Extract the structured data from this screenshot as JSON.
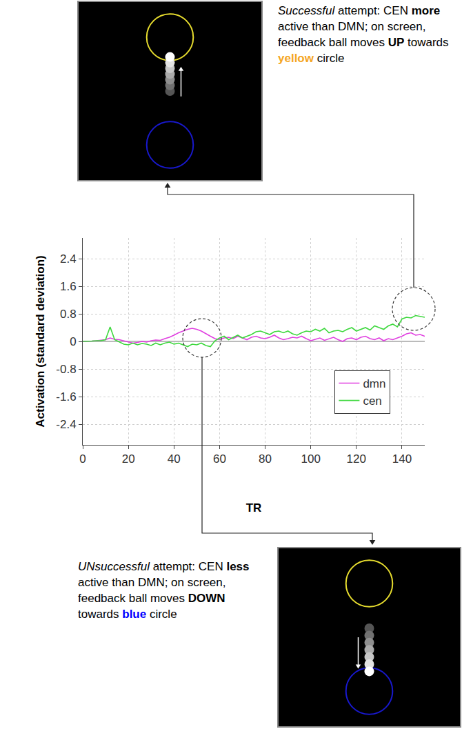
{
  "chart_data": {
    "type": "line",
    "x_label": "TR",
    "y_label": "Activation (standard deviation)",
    "x": [
      0,
      2,
      4,
      6,
      8,
      10,
      12,
      14,
      16,
      18,
      20,
      22,
      24,
      26,
      28,
      30,
      32,
      34,
      36,
      38,
      40,
      42,
      44,
      46,
      48,
      50,
      52,
      54,
      56,
      58,
      60,
      62,
      64,
      66,
      68,
      70,
      72,
      74,
      76,
      78,
      80,
      82,
      84,
      86,
      88,
      90,
      92,
      94,
      96,
      98,
      100,
      102,
      104,
      106,
      108,
      110,
      112,
      114,
      116,
      118,
      120,
      122,
      124,
      126,
      128,
      130,
      132,
      134,
      136,
      138,
      140,
      142,
      144,
      146,
      148,
      150
    ],
    "series": [
      {
        "name": "dmn",
        "color": "#e040e0",
        "values": [
          0,
          0,
          0.01,
          0.02,
          0.03,
          0.05,
          0.1,
          0.06,
          0.05,
          0.02,
          -0.02,
          -0.05,
          -0.03,
          0,
          -0.02,
          0.02,
          0.04,
          0.03,
          0.08,
          0.12,
          0.18,
          0.25,
          0.3,
          0.35,
          0.38,
          0.35,
          0.3,
          0.22,
          0.15,
          0.08,
          0.05,
          0.1,
          0.12,
          0.08,
          0.15,
          0.1,
          0.05,
          0.12,
          0.15,
          0.1,
          0.08,
          0.12,
          0.18,
          0.1,
          0.05,
          0.08,
          0.12,
          0.1,
          0.15,
          0.08,
          0.02,
          0.06,
          0.1,
          0.03,
          0.08,
          0.12,
          0.05,
          0,
          0.08,
          0.1,
          0.05,
          0.12,
          0.15,
          0.08,
          0.05,
          0.1,
          0.02,
          0.08,
          0.05,
          0.1,
          0.15,
          0.22,
          0.25,
          0.18,
          0.2,
          0.15
        ]
      },
      {
        "name": "cen",
        "color": "#3ed83e",
        "values": [
          0,
          0,
          0.01,
          0.02,
          0.02,
          0.05,
          0.42,
          0.05,
          -0.02,
          -0.08,
          -0.1,
          -0.05,
          -0.1,
          -0.06,
          -0.08,
          -0.12,
          -0.05,
          -0.1,
          -0.05,
          -0.02,
          -0.08,
          -0.05,
          -0.1,
          -0.15,
          -0.08,
          -0.1,
          -0.05,
          -0.12,
          -0.15,
          0.02,
          0.1,
          0.15,
          0.05,
          0.12,
          0.18,
          0.1,
          0.15,
          0.2,
          0.28,
          0.3,
          0.25,
          0.2,
          0.28,
          0.3,
          0.25,
          0.3,
          0.22,
          0.18,
          0.25,
          0.3,
          0.28,
          0.35,
          0.3,
          0.38,
          0.25,
          0.3,
          0.32,
          0.28,
          0.35,
          0.4,
          0.3,
          0.35,
          0.4,
          0.33,
          0.45,
          0.4,
          0.35,
          0.45,
          0.5,
          0.42,
          0.65,
          0.7,
          0.68,
          0.75,
          0.72,
          0.7
        ]
      }
    ],
    "xlim": [
      0,
      150
    ],
    "ylim": [
      -3,
      3
    ],
    "xticks": [
      0,
      20,
      40,
      60,
      80,
      100,
      120,
      140
    ],
    "yticks": [
      -2.4,
      -1.6,
      -0.8,
      0,
      0.8,
      1.6,
      2.4
    ],
    "grid": true,
    "legend": "lower right"
  },
  "panels": [
    {
      "caption": [
        {
          "text": "Successful",
          "style": "italic"
        },
        {
          "text": " attempt: CEN "
        },
        {
          "text": "more",
          "style": "bold"
        },
        {
          "text": " active than DMN; on screen, feedback ball moves "
        },
        {
          "text": "UP",
          "style": "bold"
        },
        {
          "text": " towards "
        },
        {
          "text": "yellow",
          "style": "bold",
          "color": "#f5a623"
        },
        {
          "text": " circle"
        }
      ],
      "ball_direction": "up",
      "circles": [
        {
          "color": "#e6dc2e"
        },
        {
          "color": "#1818cc"
        }
      ]
    },
    {
      "caption": [
        {
          "text": "UNsuccessful",
          "style": "italic"
        },
        {
          "text": " attempt: CEN "
        },
        {
          "text": "less",
          "style": "bold"
        },
        {
          "text": " active than DMN; on screen, feedback ball moves "
        },
        {
          "text": "DOWN",
          "style": "bold"
        },
        {
          "text": " towards "
        },
        {
          "text": "blue",
          "style": "bold",
          "color": "#0000ff"
        },
        {
          "text": " circle"
        }
      ],
      "ball_direction": "down",
      "circles": [
        {
          "color": "#e6dc2e"
        },
        {
          "color": "#1818cc"
        }
      ]
    }
  ]
}
